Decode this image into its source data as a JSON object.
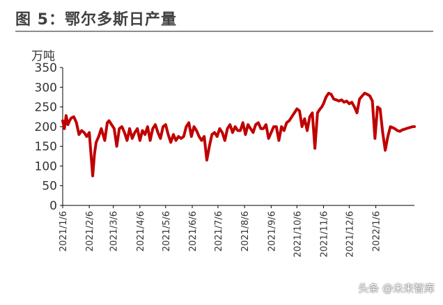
{
  "header": {
    "title": "图 5：鄂尔多斯日产量"
  },
  "watermark": "头条 @未来智库",
  "colors": {
    "series": "#c00000",
    "axis": "#000000",
    "text": "#333333"
  },
  "chart_data": {
    "type": "line",
    "title": "",
    "unit_label": "万吨",
    "xlabel": "",
    "ylabel": "",
    "ylim": [
      0,
      350
    ],
    "yticks": [
      0,
      50,
      100,
      150,
      200,
      250,
      300,
      350
    ],
    "xlim": [
      "2021-01-06",
      "2022-02-20"
    ],
    "xticks": [
      "2021/1/6",
      "2021/2/6",
      "2021/3/6",
      "2021/4/6",
      "2021/5/6",
      "2021/6/6",
      "2021/7/6",
      "2021/8/6",
      "2021/9/6",
      "2021/10/6",
      "2021/11/6",
      "2021/12/6",
      "2022/1/6"
    ],
    "grid": false,
    "series": [
      {
        "color": "#c00000",
        "x": [
          "2021-01-06",
          "2021-01-08",
          "2021-01-10",
          "2021-01-12",
          "2021-01-14",
          "2021-01-16",
          "2021-01-19",
          "2021-01-22",
          "2021-01-25",
          "2021-01-28",
          "2021-01-31",
          "2021-02-03",
          "2021-02-06",
          "2021-02-08",
          "2021-02-10",
          "2021-02-12",
          "2021-02-14",
          "2021-02-17",
          "2021-02-20",
          "2021-02-24",
          "2021-02-27",
          "2021-03-01",
          "2021-03-04",
          "2021-03-07",
          "2021-03-10",
          "2021-03-13",
          "2021-03-16",
          "2021-03-19",
          "2021-03-22",
          "2021-03-25",
          "2021-03-28",
          "2021-03-31",
          "2021-04-03",
          "2021-04-06",
          "2021-04-09",
          "2021-04-12",
          "2021-04-15",
          "2021-04-18",
          "2021-04-21",
          "2021-04-24",
          "2021-04-27",
          "2021-04-30",
          "2021-05-03",
          "2021-05-06",
          "2021-05-09",
          "2021-05-12",
          "2021-05-15",
          "2021-05-18",
          "2021-05-21",
          "2021-05-24",
          "2021-05-27",
          "2021-05-30",
          "2021-06-02",
          "2021-06-05",
          "2021-06-08",
          "2021-06-11",
          "2021-06-14",
          "2021-06-17",
          "2021-06-20",
          "2021-06-23",
          "2021-06-26",
          "2021-06-29",
          "2021-07-02",
          "2021-07-05",
          "2021-07-08",
          "2021-07-11",
          "2021-07-14",
          "2021-07-17",
          "2021-07-20",
          "2021-07-23",
          "2021-07-26",
          "2021-07-29",
          "2021-08-01",
          "2021-08-04",
          "2021-08-07",
          "2021-08-10",
          "2021-08-13",
          "2021-08-16",
          "2021-08-19",
          "2021-08-22",
          "2021-08-25",
          "2021-08-28",
          "2021-08-31",
          "2021-09-03",
          "2021-09-06",
          "2021-09-09",
          "2021-09-12",
          "2021-09-15",
          "2021-09-18",
          "2021-09-21",
          "2021-09-24",
          "2021-09-27",
          "2021-09-30",
          "2021-10-03",
          "2021-10-06",
          "2021-10-09",
          "2021-10-12",
          "2021-10-15",
          "2021-10-18",
          "2021-10-21",
          "2021-10-24",
          "2021-10-27",
          "2021-10-30",
          "2021-11-02",
          "2021-11-04",
          "2021-11-06",
          "2021-11-09",
          "2021-11-12",
          "2021-11-15",
          "2021-11-18",
          "2021-11-21",
          "2021-11-24",
          "2021-11-27",
          "2021-11-30",
          "2021-12-03",
          "2021-12-06",
          "2021-12-09",
          "2021-12-12",
          "2021-12-15",
          "2021-12-18",
          "2021-12-21",
          "2021-12-24",
          "2021-12-27",
          "2021-12-30",
          "2022-01-02",
          "2022-01-05",
          "2022-01-08",
          "2022-01-11",
          "2022-01-14",
          "2022-01-17",
          "2022-01-20",
          "2022-01-23",
          "2022-01-25",
          "2022-01-28",
          "2022-01-31",
          "2022-02-03",
          "2022-02-06",
          "2022-02-09",
          "2022-02-12",
          "2022-02-15",
          "2022-02-18",
          "2022-02-20"
        ],
        "values": [
          215,
          195,
          228,
          205,
          215,
          222,
          225,
          210,
          180,
          190,
          185,
          175,
          185,
          130,
          75,
          130,
          160,
          175,
          195,
          165,
          210,
          215,
          205,
          195,
          150,
          195,
          200,
          185,
          165,
          195,
          170,
          185,
          195,
          165,
          190,
          180,
          200,
          165,
          195,
          205,
          185,
          170,
          200,
          205,
          180,
          160,
          180,
          165,
          175,
          170,
          175,
          200,
          210,
          175,
          200,
          190,
          175,
          165,
          175,
          115,
          150,
          180,
          185,
          175,
          195,
          185,
          165,
          195,
          205,
          185,
          200,
          190,
          190,
          210,
          180,
          205,
          195,
          185,
          205,
          210,
          195,
          195,
          205,
          170,
          185,
          200,
          200,
          165,
          200,
          190,
          210,
          215,
          225,
          235,
          245,
          240,
          200,
          220,
          190,
          225,
          235,
          145,
          235,
          245,
          250,
          258,
          275,
          285,
          282,
          270,
          268,
          265,
          268,
          262,
          265,
          258,
          262,
          250,
          235,
          270,
          278,
          285,
          282,
          278,
          265,
          170,
          250,
          245,
          185,
          140,
          175,
          200,
          198,
          195,
          190,
          188,
          192,
          194,
          196,
          198,
          200,
          200
        ]
      }
    ]
  }
}
